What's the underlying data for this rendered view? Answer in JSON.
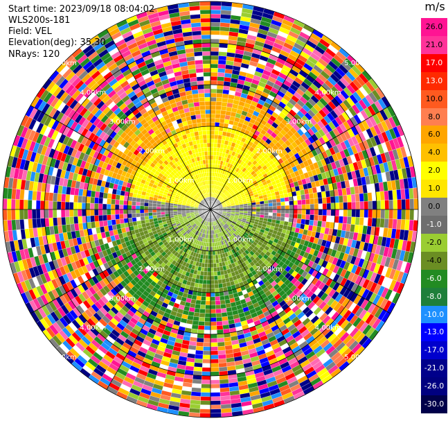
{
  "header": {
    "start_time": "Start time: 2023/09/18 08:04:02",
    "site": "WLS200s-181",
    "field": "Field: VEL",
    "elevation": "Elevation(deg): 35.30",
    "nrays": "NRays: 120"
  },
  "chart_data": {
    "type": "heatmap",
    "projection": "polar PPI",
    "field": "VEL",
    "nrays": 120,
    "units": "m/s",
    "range_ring_labels": [
      "1.00km",
      "2.00km",
      "3.00km",
      "4.00km",
      "5.00km"
    ],
    "colorbar": {
      "unit": "m/s",
      "ticks": [
        "26.0",
        "21.0",
        "17.0",
        "13.0",
        "10.0",
        "8.0",
        "6.0",
        "4.0",
        "2.0",
        "1.0",
        "0.0",
        "-1.0",
        "-2.0",
        "-4.0",
        "-6.0",
        "-8.0",
        "-10.0",
        "-13.0",
        "-17.0",
        "-21.0",
        "-26.0",
        "-30.0"
      ],
      "colors": [
        "#ff1493",
        "#ff3399",
        "#ff0000",
        "#ff2a00",
        "#ff5a1f",
        "#ff7f50",
        "#ffa500",
        "#ffc000",
        "#ffff00",
        "#ffe600",
        "#808080",
        "#6e6e6e",
        "#9acd32",
        "#6b8e23",
        "#228b22",
        "#1e7f3a",
        "#1e90ff",
        "#0000ff",
        "#0000cd",
        "#00008b",
        "#000080",
        "#00004a"
      ]
    },
    "description_of_pattern": "inner region: yellow/orange (positive) in north half, green/olive (negative) in south half, gray near zero along east-west band; outer region noisy"
  }
}
